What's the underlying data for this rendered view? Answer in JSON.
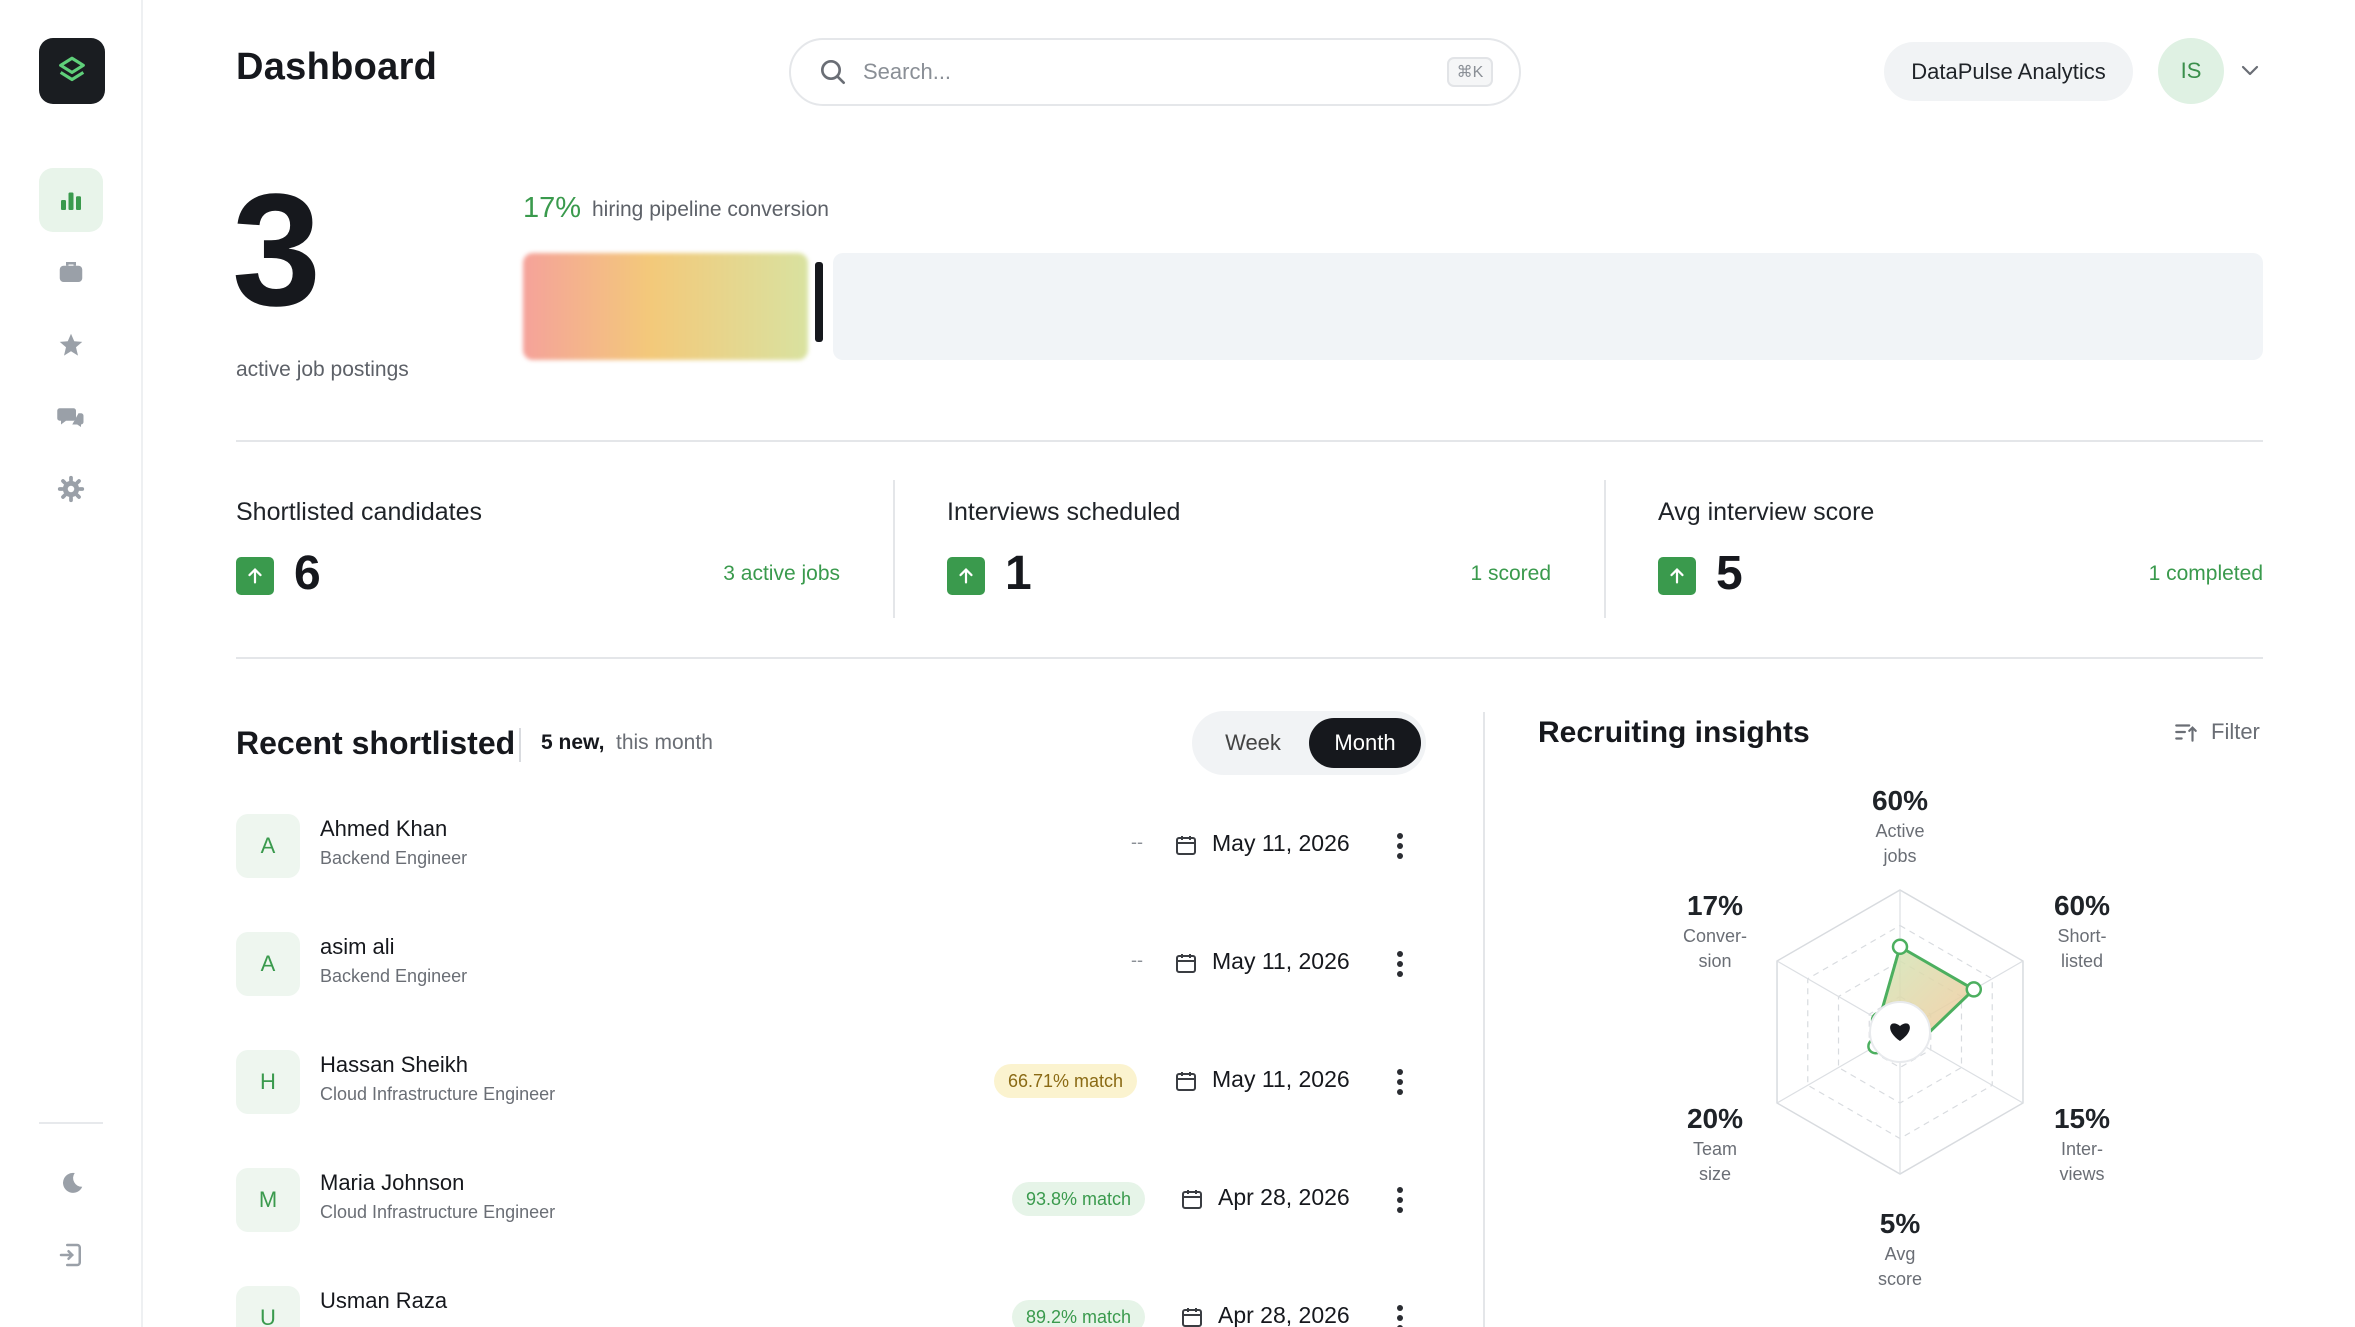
{
  "header": {
    "title": "Dashboard",
    "search_placeholder": "Search...",
    "search_shortcut": "⌘K",
    "org_name": "DataPulse Analytics",
    "user_initials": "IS"
  },
  "sidebar": {
    "items": [
      {
        "icon": "bar-chart-icon",
        "active": true
      },
      {
        "icon": "briefcase-icon",
        "active": false
      },
      {
        "icon": "star-icon",
        "active": false
      },
      {
        "icon": "chat-icon",
        "active": false
      },
      {
        "icon": "gear-icon",
        "active": false
      }
    ],
    "bottom": [
      {
        "icon": "moon-icon"
      },
      {
        "icon": "logout-icon"
      }
    ]
  },
  "hero": {
    "value": "3",
    "label": "active job postings",
    "conversion_pct": "17%",
    "conversion_label": "hiring pipeline conversion",
    "conversion_fraction": 0.17
  },
  "stats": [
    {
      "title": "Shortlisted candidates",
      "value": "6",
      "sub": "3 active jobs"
    },
    {
      "title": "Interviews scheduled",
      "value": "1",
      "sub": "1 scored"
    },
    {
      "title": "Avg interview score",
      "value": "5",
      "sub": "1 completed"
    }
  ],
  "recent": {
    "title": "Recent shortlisted",
    "count": "5 new,",
    "period": "this month",
    "toggle": {
      "week": "Week",
      "month": "Month",
      "selected": "Month"
    },
    "rows": [
      {
        "initial": "A",
        "name": "Ahmed Khan",
        "role": "Backend Engineer",
        "match": "--",
        "match_type": "none",
        "date": "May 11, 2026"
      },
      {
        "initial": "A",
        "name": "asim ali",
        "role": "Backend Engineer",
        "match": "--",
        "match_type": "none",
        "date": "May 11, 2026"
      },
      {
        "initial": "H",
        "name": "Hassan Sheikh",
        "role": "Cloud Infrastructure Engineer",
        "match": "66.71% match",
        "match_type": "yellow",
        "date": "May 11, 2026"
      },
      {
        "initial": "M",
        "name": "Maria Johnson",
        "role": "Cloud Infrastructure Engineer",
        "match": "93.8% match",
        "match_type": "green",
        "date": "Apr 28, 2026"
      },
      {
        "initial": "U",
        "name": "Usman Raza",
        "role": "",
        "match": "89.2% match",
        "match_type": "green",
        "date": "Apr 28, 2026"
      }
    ]
  },
  "insights": {
    "title": "Recruiting insights",
    "filter_label": "Filter",
    "axes": [
      {
        "pct": "60%",
        "label_1": "Active",
        "label_2": "jobs",
        "value": 60
      },
      {
        "pct": "60%",
        "label_1": "Short-",
        "label_2": "listed",
        "value": 60
      },
      {
        "pct": "15%",
        "label_1": "Inter-",
        "label_2": "views",
        "value": 15
      },
      {
        "pct": "5%",
        "label_1": "Avg",
        "label_2": "score",
        "value": 5
      },
      {
        "pct": "20%",
        "label_1": "Team",
        "label_2": "size",
        "value": 20
      },
      {
        "pct": "17%",
        "label_1": "Conver-",
        "label_2": "sion",
        "value": 17
      }
    ]
  },
  "colors": {
    "accent": "#3a9a4d",
    "dark": "#16181d",
    "badge_yellow": "#fbf3cf",
    "badge_green": "#e6f4e8"
  }
}
